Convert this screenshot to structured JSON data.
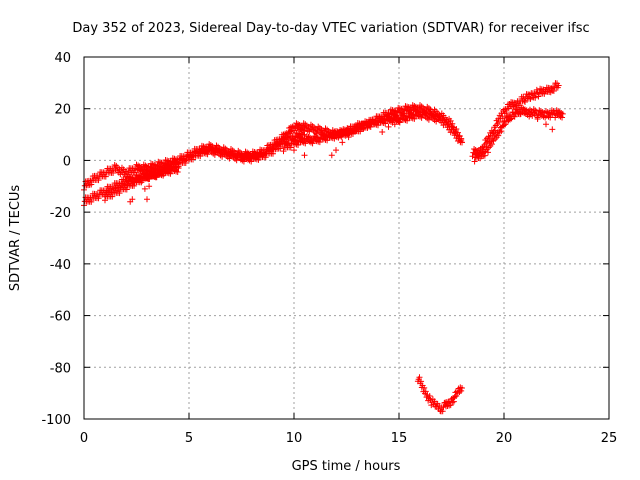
{
  "chart_data": {
    "type": "scatter",
    "title": "Day 352 of 2023, Sidereal Day-to-day VTEC variation (SDTVAR) for receiver ifsc",
    "xlabel": "GPS time / hours",
    "ylabel": "SDTVAR / TECUs",
    "xlim": [
      0,
      25
    ],
    "ylim": [
      -100,
      40
    ],
    "x_ticks": [
      0,
      5,
      10,
      15,
      20,
      25
    ],
    "y_ticks": [
      -100,
      -80,
      -60,
      -40,
      -20,
      0,
      20,
      40
    ],
    "grid": true,
    "marker": "plus",
    "color": "#ff0000",
    "series": [
      {
        "x": [
          0.0,
          0.5,
          1.0,
          1.5,
          2.0,
          2.5,
          3.0,
          3.5,
          4.0,
          4.5,
          5.0,
          5.5,
          6.0,
          6.5,
          7.0,
          7.5,
          8.0,
          8.5,
          9.0,
          9.5,
          10.0,
          10.5,
          11.0,
          11.5,
          12.0,
          12.5,
          13.0,
          13.5,
          14.0,
          14.5,
          15.0,
          15.5,
          16.0,
          16.5,
          17.0,
          17.5,
          18.0
        ],
        "y": [
          -10,
          -7,
          -5,
          -3,
          -5,
          -3,
          -3,
          -2,
          -1,
          0,
          2,
          4,
          5,
          4,
          3,
          2,
          2,
          3,
          6,
          9,
          13,
          13,
          12,
          11,
          10,
          11,
          12,
          14,
          16,
          18,
          19,
          20,
          20,
          19,
          17,
          14,
          7
        ]
      },
      {
        "x": [
          0.0,
          0.5,
          1.0,
          1.5,
          2.0,
          2.5,
          3.0,
          3.5,
          4.0,
          4.5,
          5.0,
          5.5,
          6.0,
          6.5,
          7.0,
          7.5,
          8.0,
          8.5,
          9.0,
          9.5,
          10.0,
          10.5
        ],
        "y": [
          -16,
          -14,
          -12,
          -10,
          -8,
          -7,
          -6,
          -5,
          -3,
          -1,
          1,
          3,
          4,
          3,
          2,
          1,
          1,
          2,
          4,
          7,
          9,
          10
        ]
      },
      {
        "x": [
          1.0,
          1.5,
          2.0,
          2.5,
          3.0,
          3.5,
          4.0,
          4.5
        ],
        "y": [
          -14,
          -12,
          -10,
          -8,
          -6,
          -5,
          -4,
          -3
        ]
      },
      {
        "x": [
          2.2,
          2.3,
          2.9,
          3.0,
          3.1
        ],
        "y": [
          -16,
          -15,
          -11,
          -15,
          -10
        ]
      },
      {
        "x": [
          9.5,
          10.0,
          10.5,
          11.0,
          11.5,
          12.0,
          12.5,
          13.0,
          13.5,
          14.0,
          14.5,
          15.0,
          15.5,
          16.0,
          16.5,
          17.0,
          17.5,
          18.0
        ],
        "y": [
          5,
          7,
          8,
          8,
          9,
          10,
          11,
          13,
          14,
          15,
          16,
          16,
          17,
          18,
          17,
          16,
          12,
          7
        ]
      },
      {
        "x": [
          10.0,
          10.5
        ],
        "y": [
          4,
          2
        ]
      },
      {
        "x": [
          11.8,
          12.0,
          12.3,
          12.6
        ],
        "y": [
          2,
          4,
          7,
          9
        ]
      },
      {
        "x": [
          14.2,
          14.5,
          14.8,
          15.0,
          15.3
        ],
        "y": [
          11,
          13,
          14,
          15,
          16
        ]
      },
      {
        "x": [
          18.5,
          18.8,
          19.0,
          19.3,
          19.5,
          19.8,
          20.0,
          20.3,
          20.6,
          21.0,
          21.3,
          21.6,
          22.0,
          22.3,
          22.6
        ],
        "y": [
          3,
          3,
          5,
          9,
          12,
          16,
          19,
          21,
          22,
          24,
          25,
          26,
          27,
          28,
          29
        ]
      },
      {
        "x": [
          18.6,
          18.9,
          19.2,
          19.5,
          19.8,
          20.1,
          20.4,
          20.8,
          21.2,
          21.6,
          22.0,
          22.4,
          22.8
        ],
        "y": [
          1,
          2,
          4,
          8,
          12,
          15,
          18,
          19,
          19,
          18,
          18,
          18,
          18
        ]
      },
      {
        "x": [
          20.8,
          21.2,
          21.6,
          22.0,
          22.3
        ],
        "y": [
          18,
          17,
          16,
          14,
          12
        ]
      },
      {
        "x": [
          15.9,
          16.2,
          16.5,
          16.8,
          17.0,
          17.2,
          17.5,
          17.8,
          18.0
        ],
        "y": [
          -84,
          -89,
          -93,
          -95,
          -96,
          -95,
          -93,
          -90,
          -88
        ]
      }
    ]
  }
}
